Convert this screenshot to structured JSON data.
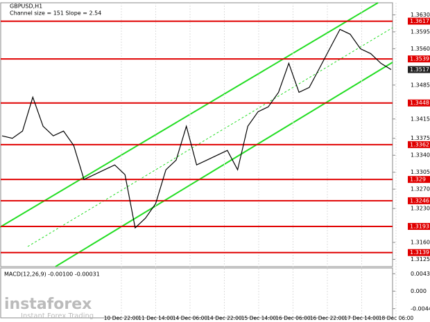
{
  "chart_data": {
    "type": "line",
    "title": "GBPUSD,H1",
    "subtitle": "Channel size = 151 Slope = 2.54",
    "series": [
      {
        "color": "#000000",
        "values": [
          1.338,
          1.3375,
          1.339,
          1.346,
          1.34,
          1.338,
          1.339,
          1.336,
          1.329,
          1.33,
          1.331,
          1.332,
          1.33,
          1.319,
          1.321,
          1.324,
          1.331,
          1.333,
          1.34,
          1.332,
          1.333,
          1.334,
          1.335,
          1.331,
          1.34,
          1.343,
          1.344,
          1.347,
          1.353,
          1.347,
          1.348,
          1.352,
          1.356,
          1.36,
          1.359,
          1.356,
          1.355,
          1.353,
          1.3517
        ]
      }
    ],
    "xlabels": [
      "10 Dec 22:00",
      "11 Dec 14:00",
      "14 Dec 06:00",
      "14 Dec 22:00",
      "15 Dec 14:00",
      "16 Dec 06:00",
      "16 Dec 22:00",
      "17 Dec 14:00",
      "18 Dec 06:00"
    ],
    "ylim": [
      1.311,
      1.3655
    ],
    "yticks": [
      {
        "value": 1.363,
        "label": "1.3630"
      },
      1.3595,
      {
        "value": 1.356,
        "label": "1.3560"
      },
      1.3485,
      1.3415,
      1.3375,
      {
        "value": 1.334,
        "label": "1.3340"
      },
      1.3305,
      {
        "value": 1.327,
        "label": "1.3270"
      },
      {
        "value": 1.323,
        "label": "1.3230"
      },
      {
        "value": 1.316,
        "label": "1.3160"
      },
      1.3125
    ],
    "levels": [
      1.3617,
      1.3539,
      1.3448,
      1.3362,
      1.329,
      1.3246,
      1.3193,
      1.3139
    ],
    "level_color": "#e00000",
    "last_price": 1.3517,
    "macd": {
      "label": "MACD(12,26,9) -0.00100 -0.00031",
      "ylim": [
        -0.0067,
        0.0058
      ],
      "yticks": [
        0.00436,
        {
          "value": 0,
          "label": "0.000"
        },
        -0.0044
      ]
    }
  },
  "watermark": {
    "brand": "instaforex",
    "tagline": "Instant Forex Trading"
  }
}
